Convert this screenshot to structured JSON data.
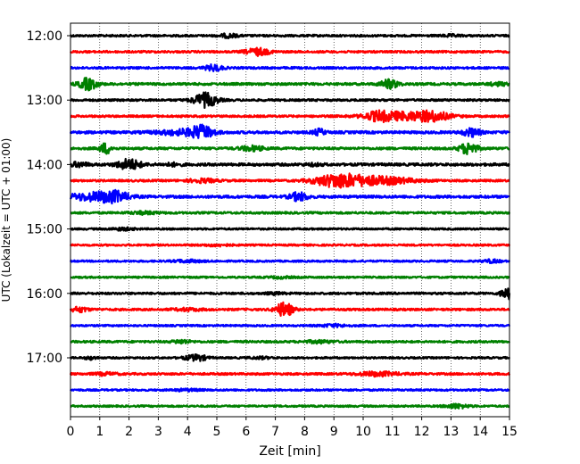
{
  "chart_data": {
    "type": "line",
    "subtype": "helicorder",
    "title": "",
    "xlabel": "Zeit  [min]",
    "ylabel": "UTC (Lokalzeit = UTC + 01:00)",
    "xlim": [
      0,
      15
    ],
    "x_ticks": [
      0,
      1,
      2,
      3,
      4,
      5,
      6,
      7,
      8,
      9,
      10,
      11,
      12,
      13,
      14,
      15
    ],
    "x_grid": "dotted",
    "y_tick_labels": [
      "12:00",
      "13:00",
      "14:00",
      "15:00",
      "16:00",
      "17:00"
    ],
    "y_tick_label_rows": [
      0,
      4,
      8,
      12,
      16,
      20
    ],
    "trace_count": 24,
    "row_minutes": 15,
    "start_time": "12:00",
    "colors": [
      "#000000",
      "#ff0000",
      "#0000ff",
      "#008000"
    ],
    "traces": [
      {
        "start": "12:00",
        "noise": 0.35,
        "events": [
          {
            "t": 5.4,
            "amp": 0.6,
            "dur": 0.3
          },
          {
            "t": 13.0,
            "amp": 0.3,
            "dur": 0.3
          }
        ]
      },
      {
        "start": "12:15",
        "noise": 0.35,
        "events": [
          {
            "t": 6.4,
            "amp": 1.2,
            "dur": 0.4
          }
        ]
      },
      {
        "start": "12:30",
        "noise": 0.35,
        "events": [
          {
            "t": 4.9,
            "amp": 1.0,
            "dur": 0.3
          }
        ]
      },
      {
        "start": "12:45",
        "noise": 0.4,
        "events": [
          {
            "t": 0.6,
            "amp": 2.0,
            "dur": 0.3
          },
          {
            "t": 10.9,
            "amp": 1.5,
            "dur": 0.3
          },
          {
            "t": 14.6,
            "amp": 0.5,
            "dur": 0.3
          }
        ]
      },
      {
        "start": "13:00",
        "noise": 0.35,
        "events": [
          {
            "t": 4.6,
            "amp": 2.4,
            "dur": 0.4
          }
        ]
      },
      {
        "start": "13:15",
        "noise": 0.35,
        "events": [
          {
            "t": 10.5,
            "amp": 1.0,
            "dur": 0.4
          },
          {
            "t": 11.4,
            "amp": 1.4,
            "dur": 1.2
          },
          {
            "t": 12.4,
            "amp": 1.2,
            "dur": 0.5
          }
        ]
      },
      {
        "start": "13:30",
        "noise": 0.45,
        "events": [
          {
            "t": 3.7,
            "amp": 0.8,
            "dur": 0.8
          },
          {
            "t": 4.5,
            "amp": 2.0,
            "dur": 0.4
          },
          {
            "t": 8.5,
            "amp": 1.0,
            "dur": 0.2
          },
          {
            "t": 13.7,
            "amp": 1.3,
            "dur": 0.3
          }
        ]
      },
      {
        "start": "13:45",
        "noise": 0.4,
        "events": [
          {
            "t": 1.2,
            "amp": 1.8,
            "dur": 0.2
          },
          {
            "t": 6.2,
            "amp": 0.8,
            "dur": 0.4
          },
          {
            "t": 13.6,
            "amp": 2.0,
            "dur": 0.3
          }
        ]
      },
      {
        "start": "14:00",
        "noise": 0.45,
        "events": [
          {
            "t": 0.3,
            "amp": 0.7,
            "dur": 0.3
          },
          {
            "t": 2.0,
            "amp": 1.8,
            "dur": 0.4
          },
          {
            "t": 3.5,
            "amp": 0.4,
            "dur": 0.3
          },
          {
            "t": 8.3,
            "amp": 0.3,
            "dur": 0.3
          }
        ]
      },
      {
        "start": "14:15",
        "noise": 0.35,
        "events": [
          {
            "t": 4.5,
            "amp": 0.6,
            "dur": 0.5
          },
          {
            "t": 8.9,
            "amp": 1.0,
            "dur": 0.7
          },
          {
            "t": 9.3,
            "amp": 1.2,
            "dur": 0.8
          },
          {
            "t": 10.5,
            "amp": 1.3,
            "dur": 1.2
          }
        ]
      },
      {
        "start": "14:30",
        "noise": 0.45,
        "events": [
          {
            "t": 0.7,
            "amp": 1.2,
            "dur": 0.8
          },
          {
            "t": 1.5,
            "amp": 1.6,
            "dur": 0.5
          },
          {
            "t": 7.8,
            "amp": 1.4,
            "dur": 0.3
          }
        ]
      },
      {
        "start": "14:45",
        "noise": 0.35,
        "events": [
          {
            "t": 2.5,
            "amp": 0.4,
            "dur": 0.5
          }
        ]
      },
      {
        "start": "15:00",
        "noise": 0.3,
        "events": [
          {
            "t": 1.8,
            "amp": 0.4,
            "dur": 0.4
          }
        ]
      },
      {
        "start": "15:15",
        "noise": 0.3,
        "events": [
          {
            "t": 5.0,
            "amp": 0.3,
            "dur": 0.5
          }
        ]
      },
      {
        "start": "15:30",
        "noise": 0.3,
        "events": [
          {
            "t": 4.0,
            "amp": 0.4,
            "dur": 0.5
          },
          {
            "t": 14.4,
            "amp": 0.5,
            "dur": 0.3
          }
        ]
      },
      {
        "start": "15:45",
        "noise": 0.3,
        "events": [
          {
            "t": 7.2,
            "amp": 0.3,
            "dur": 0.4
          }
        ]
      },
      {
        "start": "16:00",
        "noise": 0.35,
        "events": [
          {
            "t": 14.9,
            "amp": 2.0,
            "dur": 0.2
          },
          {
            "t": 7.0,
            "amp": 0.3,
            "dur": 0.3
          }
        ]
      },
      {
        "start": "16:15",
        "noise": 0.35,
        "events": [
          {
            "t": 0.3,
            "amp": 0.8,
            "dur": 0.3
          },
          {
            "t": 7.3,
            "amp": 2.4,
            "dur": 0.3
          },
          {
            "t": 4.0,
            "amp": 0.4,
            "dur": 0.5
          }
        ]
      },
      {
        "start": "16:30",
        "noise": 0.3,
        "events": [
          {
            "t": 9.0,
            "amp": 0.4,
            "dur": 0.5
          }
        ]
      },
      {
        "start": "16:45",
        "noise": 0.35,
        "events": [
          {
            "t": 3.8,
            "amp": 0.6,
            "dur": 0.3
          },
          {
            "t": 8.5,
            "amp": 0.4,
            "dur": 0.5
          }
        ]
      },
      {
        "start": "17:00",
        "noise": 0.3,
        "events": [
          {
            "t": 0.7,
            "amp": 0.5,
            "dur": 0.2
          },
          {
            "t": 4.2,
            "amp": 0.6,
            "dur": 0.4
          },
          {
            "t": 4.4,
            "amp": 0.5,
            "dur": 0.3
          },
          {
            "t": 6.5,
            "amp": 0.3,
            "dur": 0.4
          }
        ]
      },
      {
        "start": "17:15",
        "noise": 0.35,
        "events": [
          {
            "t": 1.2,
            "amp": 0.4,
            "dur": 0.4
          },
          {
            "t": 10.5,
            "amp": 0.7,
            "dur": 0.7
          }
        ]
      },
      {
        "start": "17:30",
        "noise": 0.3,
        "events": [
          {
            "t": 4.0,
            "amp": 0.3,
            "dur": 0.5
          }
        ]
      },
      {
        "start": "17:45",
        "noise": 0.3,
        "events": [
          {
            "t": 13.2,
            "amp": 0.7,
            "dur": 0.4
          }
        ]
      }
    ]
  }
}
